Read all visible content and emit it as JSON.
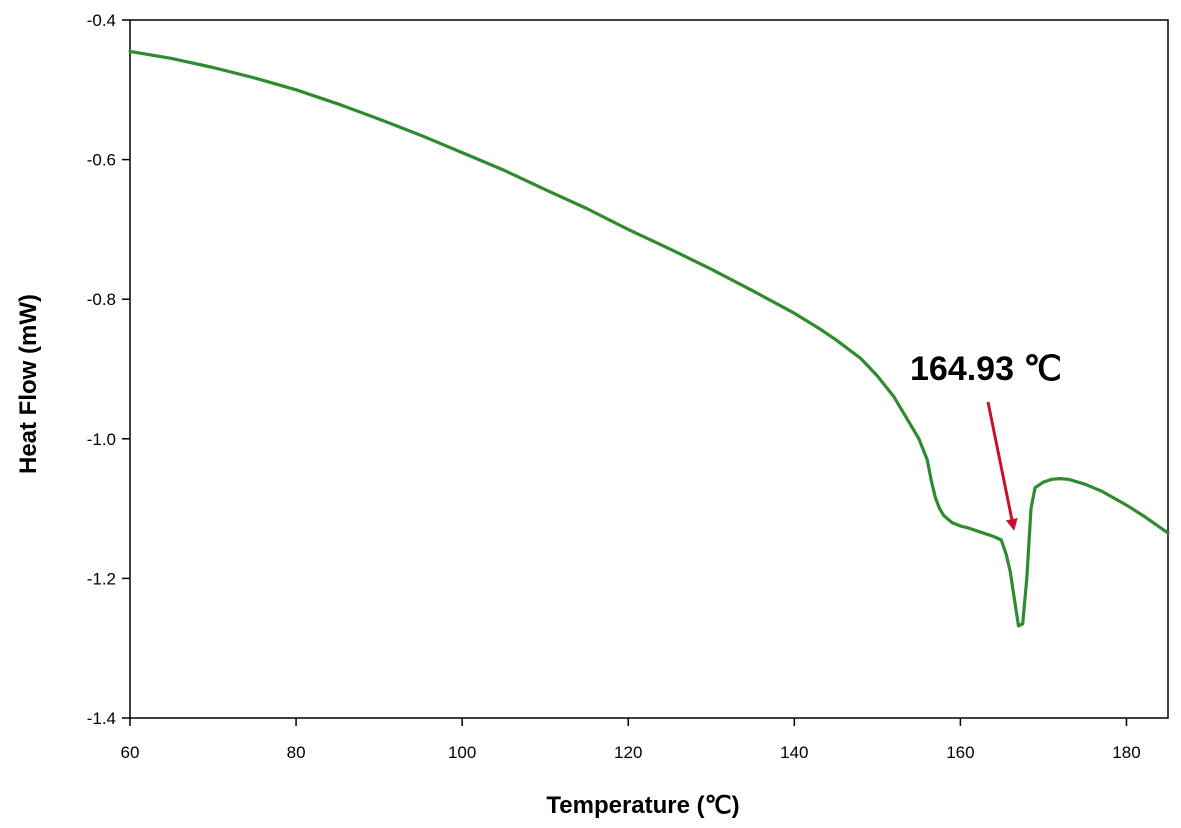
{
  "chart_data": {
    "type": "line",
    "xlabel": "Temperature  (℃)",
    "ylabel": "Heat Flow (mW)",
    "xlim": [
      60,
      185
    ],
    "ylim": [
      -1.4,
      -0.4
    ],
    "x_ticks": [
      "60",
      "80",
      "100",
      "120",
      "140",
      "160",
      "180"
    ],
    "y_ticks": [
      "-0.4",
      "-0.6",
      "-0.8",
      "-1.0",
      "-1.2",
      "-1.4"
    ],
    "grid": false,
    "legend": "none",
    "series": [
      {
        "color": "#2e8b2e",
        "x": [
          60,
          65,
          70,
          75,
          80,
          85,
          90,
          95,
          100,
          105,
          110,
          115,
          120,
          125,
          130,
          135,
          140,
          143,
          145,
          148,
          150,
          152,
          154,
          155,
          156,
          156.5,
          157,
          157.5,
          158,
          159,
          160,
          161,
          162,
          163,
          164,
          164.93,
          165.5,
          166,
          166.5,
          167,
          167.5,
          168,
          168.5,
          169,
          170,
          171,
          172,
          173,
          175,
          177,
          180,
          182,
          185
        ],
        "y": [
          -0.445,
          -0.455,
          -0.468,
          -0.483,
          -0.5,
          -0.52,
          -0.542,
          -0.565,
          -0.59,
          -0.615,
          -0.643,
          -0.67,
          -0.7,
          -0.728,
          -0.757,
          -0.788,
          -0.82,
          -0.842,
          -0.858,
          -0.885,
          -0.91,
          -0.94,
          -0.98,
          -1.0,
          -1.03,
          -1.06,
          -1.085,
          -1.1,
          -1.11,
          -1.12,
          -1.125,
          -1.128,
          -1.132,
          -1.136,
          -1.14,
          -1.145,
          -1.165,
          -1.19,
          -1.23,
          -1.268,
          -1.265,
          -1.2,
          -1.1,
          -1.07,
          -1.062,
          -1.058,
          -1.057,
          -1.058,
          -1.065,
          -1.075,
          -1.095,
          -1.11,
          -1.135
        ]
      }
    ],
    "annotation": {
      "text": "164.93 ℃",
      "target_x": 164.93,
      "target_y": -1.145,
      "color": "#c8102e"
    }
  }
}
